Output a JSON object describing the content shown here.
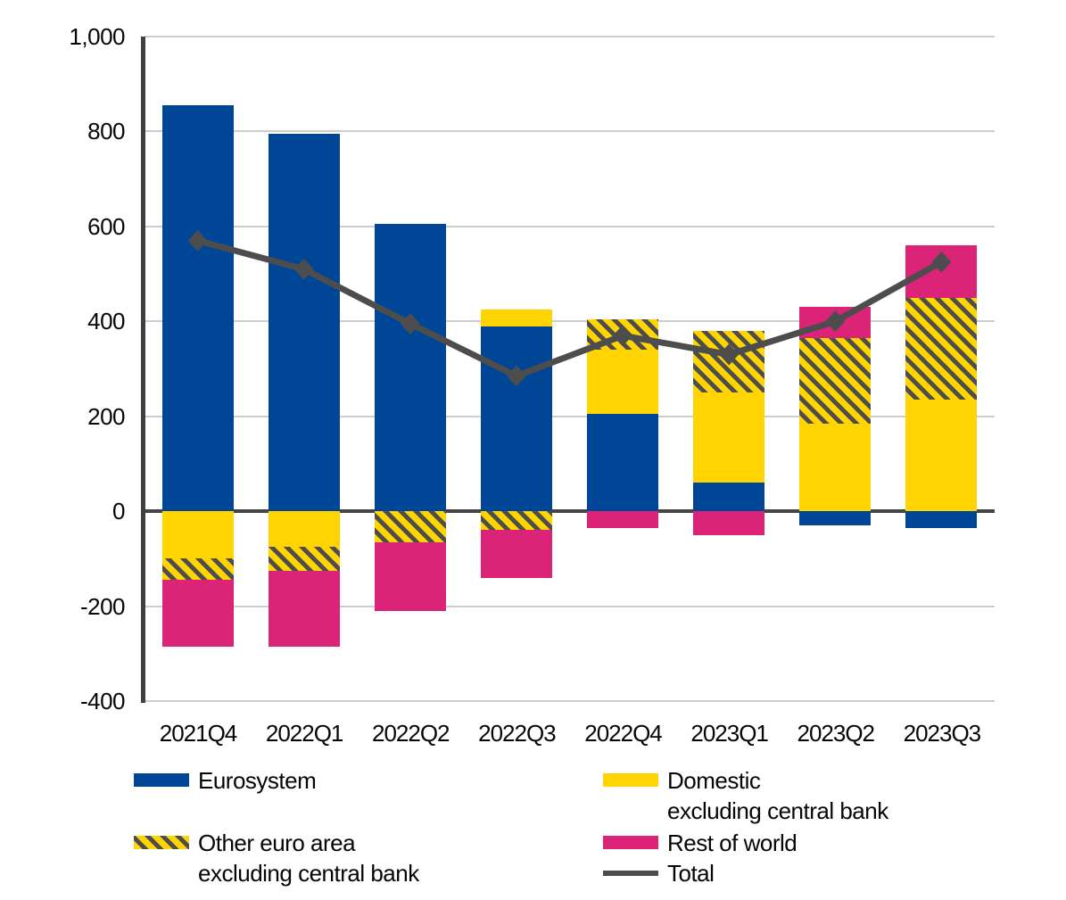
{
  "chart_data": {
    "type": "bar",
    "subtype": "stacked-bar-with-line",
    "categories": [
      "2021Q4",
      "2022Q1",
      "2022Q2",
      "2022Q3",
      "2022Q4",
      "2023Q1",
      "2023Q2",
      "2023Q3"
    ],
    "series": [
      {
        "name": "Eurosystem",
        "type": "bar",
        "pattern": "solid",
        "color": "#004696",
        "values": [
          855,
          795,
          605,
          390,
          205,
          60,
          -30,
          -35
        ]
      },
      {
        "name": "Domestic excluding central bank",
        "type": "bar",
        "pattern": "solid",
        "color": "#FFD400",
        "values": [
          -100,
          -75,
          0,
          35,
          135,
          190,
          185,
          235
        ]
      },
      {
        "name": "Other euro area excluding central bank",
        "type": "bar",
        "pattern": "hatched",
        "color": "#FFD400",
        "hatch_color": "#4D4D4D",
        "values": [
          -45,
          -50,
          -65,
          -40,
          65,
          130,
          180,
          215
        ]
      },
      {
        "name": "Rest of world",
        "type": "bar",
        "pattern": "solid",
        "color": "#DB2478",
        "values": [
          -140,
          -160,
          -145,
          -100,
          -35,
          -50,
          65,
          110
        ]
      },
      {
        "name": "Total",
        "type": "line",
        "marker": "diamond",
        "color": "#4D4D4D",
        "values": [
          570,
          510,
          395,
          285,
          370,
          330,
          400,
          525
        ]
      }
    ],
    "ylim": [
      -400,
      1000
    ],
    "yticks": [
      {
        "label": "1,000",
        "value": 1000
      },
      {
        "label": "800",
        "value": 800
      },
      {
        "label": "600",
        "value": 600
      },
      {
        "label": "400",
        "value": 400
      },
      {
        "label": "200",
        "value": 200
      },
      {
        "label": "0",
        "value": 0
      },
      {
        "label": "-200",
        "value": -200
      },
      {
        "label": "-400",
        "value": -400
      }
    ],
    "grid": true,
    "legend_position": "bottom",
    "title": ""
  },
  "legend": {
    "eurosystem": {
      "label": "Eurosystem"
    },
    "other_euro_area": {
      "label_line1": "Other euro area",
      "label_line2": "excluding central bank"
    },
    "domestic": {
      "label_line1": "Domestic",
      "label_line2": "excluding central bank"
    },
    "rest_of_world": {
      "label": "Rest of world"
    },
    "total": {
      "label": "Total"
    }
  },
  "colors": {
    "eurosystem": "#004696",
    "domestic": "#FFD400",
    "other_hatch_bg": "#FFD400",
    "other_hatch_stripe": "#4D4D4D",
    "rest_of_world": "#DB2478",
    "total_line": "#4D4D4D",
    "gridline": "#cdcdcd",
    "axis": "#404040"
  }
}
